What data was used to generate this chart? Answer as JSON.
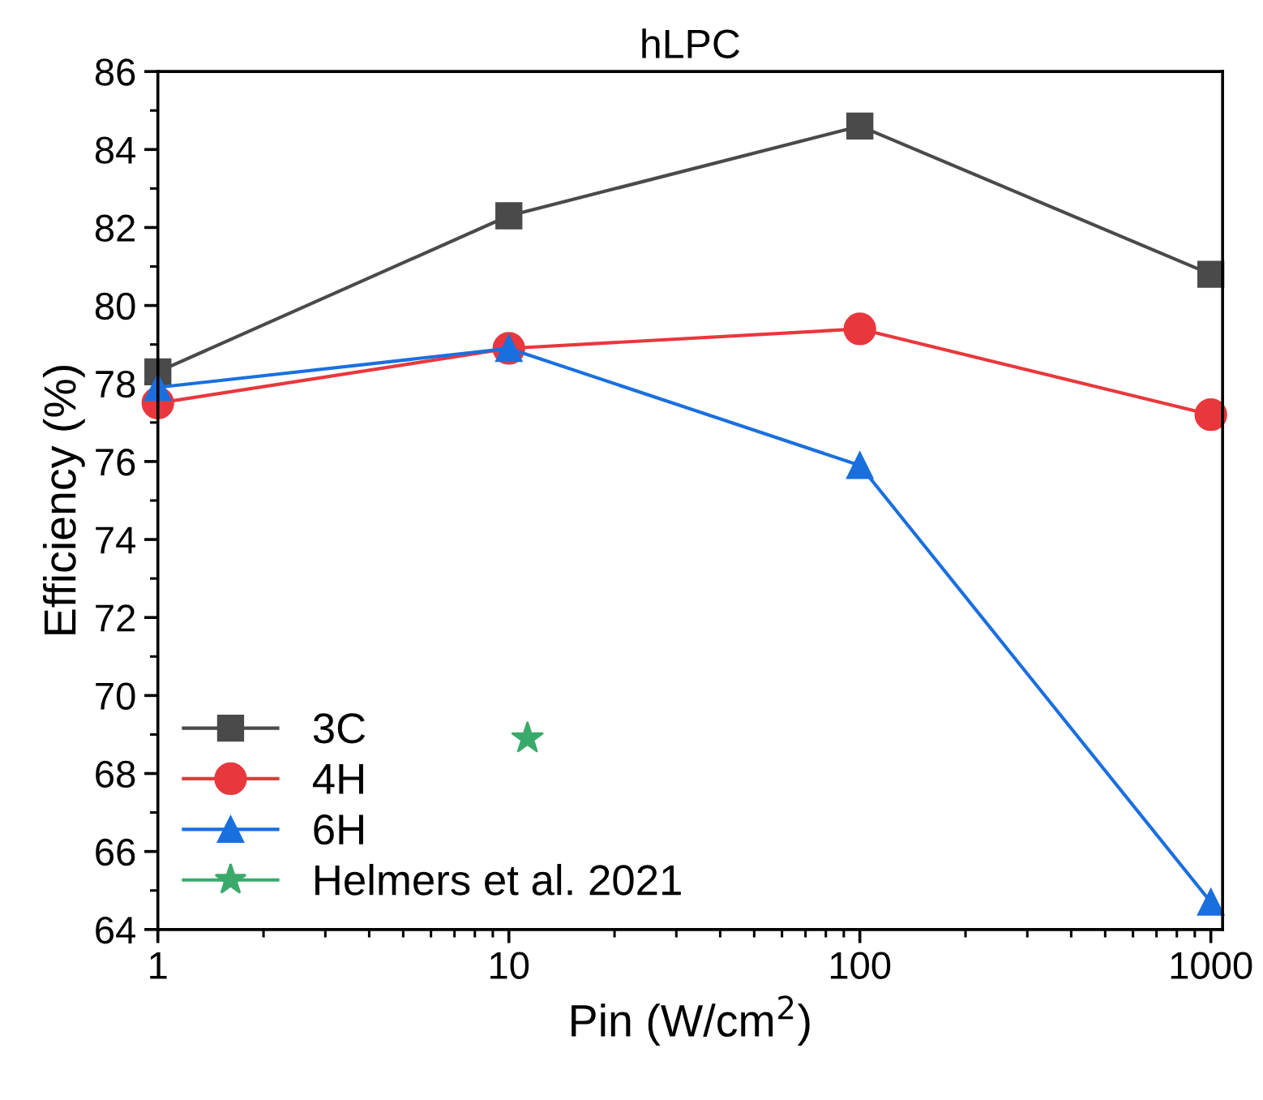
{
  "chart_data": {
    "type": "line",
    "title": "hLPC",
    "xlabel": "Pin (W/cm$^{2}$)",
    "ylabel": "Efficiency (%)",
    "log": "x",
    "xlim": [
      1,
      1080
    ],
    "xticks": [
      1,
      10,
      100,
      1000
    ],
    "ylim": [
      64,
      86
    ],
    "yticks": [
      64,
      66,
      68,
      70,
      72,
      74,
      76,
      78,
      80,
      82,
      84,
      86
    ],
    "grid": false,
    "legend": "bottom left",
    "x": [
      1,
      10,
      100,
      1000
    ],
    "series": [
      {
        "name": "3C",
        "color": "#4a4a4a",
        "marker": "square",
        "values": [
          78.3,
          82.3,
          84.6,
          80.8
        ]
      },
      {
        "name": "4H",
        "color": "#e8383d",
        "marker": "circle",
        "values": [
          77.5,
          78.9,
          79.4,
          77.2
        ]
      },
      {
        "name": "6H",
        "color": "#1a6fdf",
        "marker": "triangle",
        "values": [
          77.9,
          78.9,
          75.9,
          64.7
        ]
      },
      {
        "name": "Helmers et al. 2021",
        "color": "#3aaa6a",
        "type": "scatter",
        "marker": "star",
        "x": [
          11.3
        ],
        "values": [
          68.9
        ]
      }
    ]
  }
}
